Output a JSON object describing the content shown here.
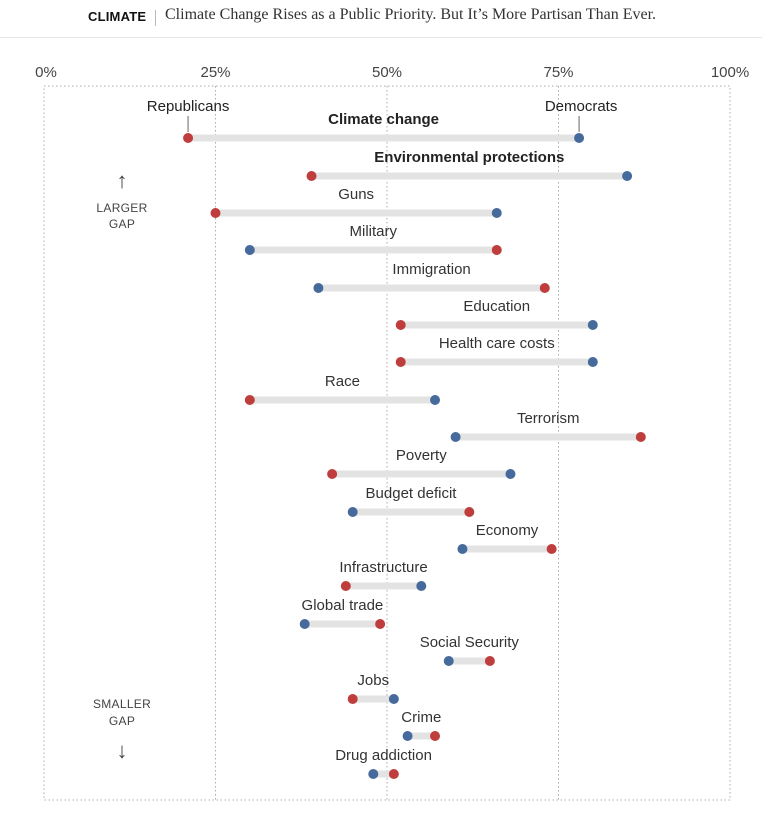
{
  "header": {
    "section": "CLIMATE",
    "headline": "Climate Change Rises as a Public Priority. But It’s More Partisan Than Ever."
  },
  "legend": {
    "left": "Republicans",
    "right": "Democrats"
  },
  "gap_notes": {
    "top_arrow": "↑",
    "top_line1": "LARGER",
    "top_line2": "GAP",
    "bottom_line1": "SMALLER",
    "bottom_line2": "GAP",
    "bottom_arrow": "↓"
  },
  "colors": {
    "republican": "#bf3d3d",
    "democrat": "#476a9c",
    "bar": "#e3e3e3",
    "grid": "#aaaaaa"
  },
  "chart_data": {
    "type": "dumbbell",
    "xlim": [
      0,
      100
    ],
    "x_ticks": [
      "0%",
      "25%",
      "50%",
      "75%",
      "100%"
    ],
    "x_tick_values": [
      0,
      25,
      50,
      75,
      100
    ],
    "series": [
      {
        "name": "Republicans"
      },
      {
        "name": "Democrats"
      }
    ],
    "rows": [
      {
        "issue": "Climate change",
        "republicans": 21,
        "democrats": 78,
        "bold": true
      },
      {
        "issue": "Environmental protections",
        "republicans": 39,
        "democrats": 85,
        "bold": true
      },
      {
        "issue": "Guns",
        "republicans": 25,
        "democrats": 66
      },
      {
        "issue": "Military",
        "republicans": 66,
        "democrats": 30
      },
      {
        "issue": "Immigration",
        "republicans": 73,
        "democrats": 40
      },
      {
        "issue": "Education",
        "republicans": 52,
        "democrats": 80
      },
      {
        "issue": "Health care costs",
        "republicans": 52,
        "democrats": 80
      },
      {
        "issue": "Race",
        "republicans": 30,
        "democrats": 57
      },
      {
        "issue": "Terrorism",
        "republicans": 87,
        "democrats": 60
      },
      {
        "issue": "Poverty",
        "republicans": 42,
        "democrats": 68
      },
      {
        "issue": "Budget deficit",
        "republicans": 62,
        "democrats": 45
      },
      {
        "issue": "Economy",
        "republicans": 74,
        "democrats": 61
      },
      {
        "issue": "Infrastructure",
        "republicans": 44,
        "democrats": 55
      },
      {
        "issue": "Global trade",
        "republicans": 49,
        "democrats": 38
      },
      {
        "issue": "Social Security",
        "republicans": 65,
        "democrats": 59
      },
      {
        "issue": "Jobs",
        "republicans": 45,
        "democrats": 51
      },
      {
        "issue": "Crime",
        "republicans": 57,
        "democrats": 53
      },
      {
        "issue": "Drug addiction",
        "republicans": 51,
        "democrats": 48
      }
    ]
  }
}
